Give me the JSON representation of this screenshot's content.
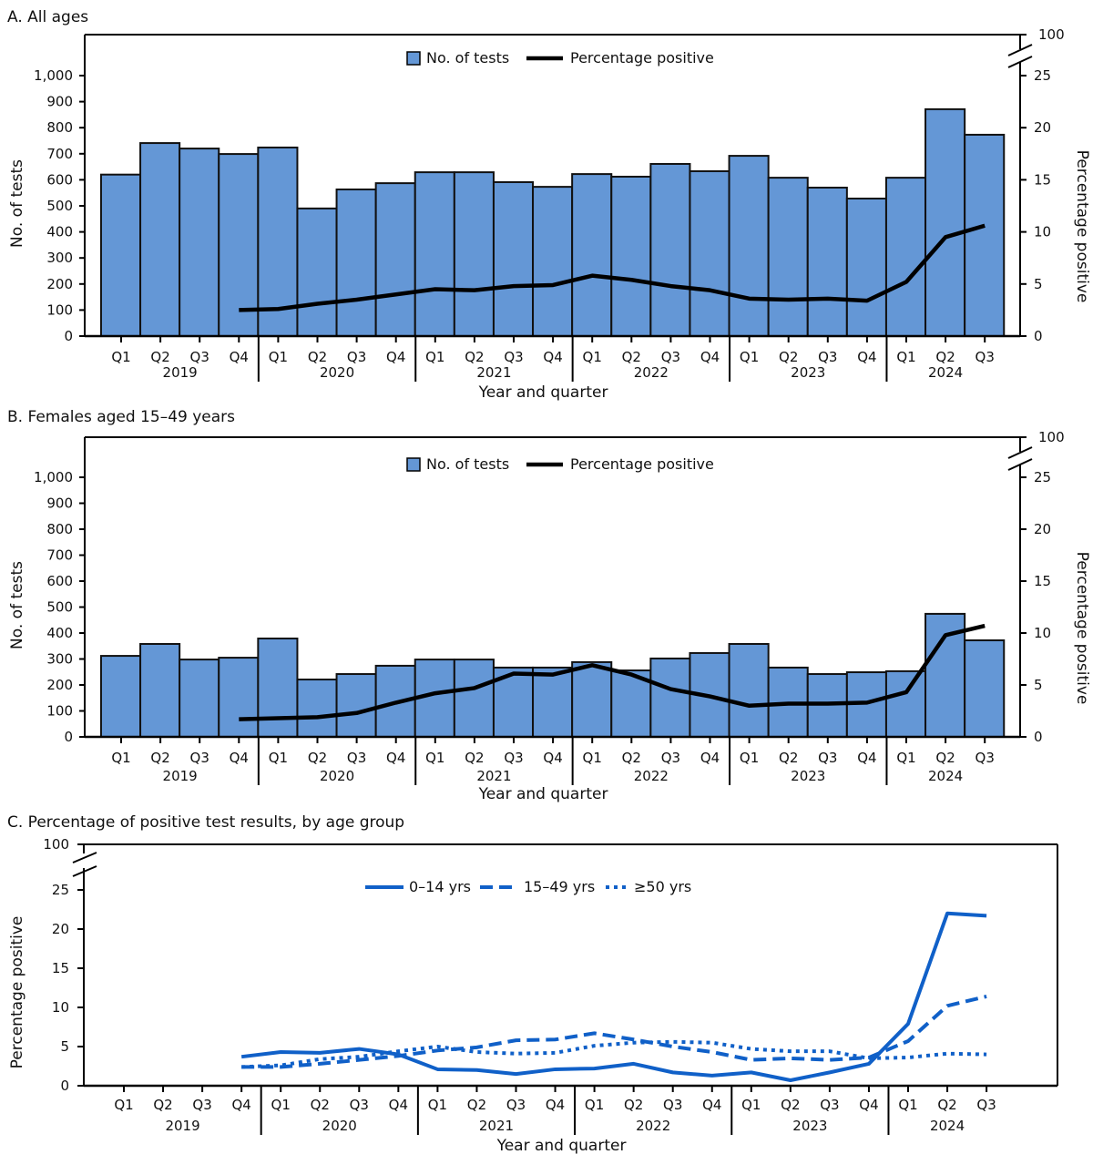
{
  "colors": {
    "bar": "#6497d6",
    "bar_stroke": "#111111",
    "pct_line": "#000000",
    "age_lines": "#1060c8"
  },
  "chart_data": [
    {
      "type": "bar",
      "title": "A. All ages",
      "xlabel": "Year and quarter",
      "ylabel": "No. of tests",
      "ylabel_right": "Percentage positive",
      "ylim": [
        0,
        1000
      ],
      "ylim_right": [
        0,
        25
      ],
      "right_axis_break_top": 100,
      "left_ticks": [
        "0",
        "100",
        "200",
        "300",
        "400",
        "500",
        "600",
        "700",
        "800",
        "900",
        "1,000"
      ],
      "right_ticks": [
        "0",
        "5",
        "10",
        "15",
        "20",
        "25",
        "100"
      ],
      "quarter_labels": [
        "Q1",
        "Q2",
        "Q3",
        "Q4",
        "Q1",
        "Q2",
        "Q3",
        "Q4",
        "Q1",
        "Q2",
        "Q3",
        "Q4",
        "Q1",
        "Q2",
        "Q3",
        "Q4",
        "Q1",
        "Q2",
        "Q3",
        "Q4",
        "Q1",
        "Q2",
        "Q3"
      ],
      "year_labels": [
        "2019",
        "2020",
        "2021",
        "2022",
        "2023",
        "2024"
      ],
      "legend": {
        "bars": "No. of tests",
        "line": "Percentage positive",
        "placement": "top-center"
      },
      "series": [
        {
          "name": "No. of tests",
          "kind": "bar",
          "values": [
            620,
            741,
            720,
            699,
            724,
            490,
            563,
            587,
            629,
            629,
            591,
            573,
            622,
            612,
            661,
            633,
            692,
            608,
            570,
            528,
            608,
            871,
            773
          ]
        },
        {
          "name": "Percentage positive",
          "kind": "line",
          "axis": "right",
          "values": [
            null,
            null,
            null,
            2.5,
            2.6,
            3.1,
            3.5,
            4.0,
            4.5,
            4.4,
            4.8,
            4.9,
            5.8,
            5.4,
            4.8,
            4.4,
            3.6,
            3.5,
            3.6,
            3.4,
            5.2,
            9.5,
            10.6
          ]
        }
      ]
    },
    {
      "type": "bar",
      "title": "B. Females aged 15–49 years",
      "xlabel": "Year and quarter",
      "ylabel": "No. of tests",
      "ylabel_right": "Percentage positive",
      "ylim": [
        0,
        1000
      ],
      "ylim_right": [
        0,
        25
      ],
      "right_axis_break_top": 100,
      "left_ticks": [
        "0",
        "100",
        "200",
        "300",
        "400",
        "500",
        "600",
        "700",
        "800",
        "900",
        "1,000"
      ],
      "right_ticks": [
        "0",
        "5",
        "10",
        "15",
        "20",
        "25",
        "100"
      ],
      "quarter_labels": [
        "Q1",
        "Q2",
        "Q3",
        "Q4",
        "Q1",
        "Q2",
        "Q3",
        "Q4",
        "Q1",
        "Q2",
        "Q3",
        "Q4",
        "Q1",
        "Q2",
        "Q3",
        "Q4",
        "Q1",
        "Q2",
        "Q3",
        "Q4",
        "Q1",
        "Q2",
        "Q3"
      ],
      "year_labels": [
        "2019",
        "2020",
        "2021",
        "2022",
        "2023",
        "2024"
      ],
      "legend": {
        "bars": "No. of tests",
        "line": "Percentage positive",
        "placement": "top-center"
      },
      "series": [
        {
          "name": "No. of tests",
          "kind": "bar",
          "values": [
            312,
            358,
            298,
            305,
            379,
            221,
            242,
            274,
            298,
            298,
            267,
            267,
            288,
            256,
            302,
            323,
            358,
            267,
            242,
            249,
            253,
            474,
            372
          ]
        },
        {
          "name": "Percentage positive",
          "kind": "line",
          "axis": "right",
          "values": [
            null,
            null,
            null,
            1.7,
            1.8,
            1.9,
            2.3,
            3.3,
            4.2,
            4.7,
            6.1,
            6.0,
            6.9,
            6.0,
            4.6,
            3.9,
            3.0,
            3.2,
            3.2,
            3.3,
            4.3,
            9.8,
            10.7
          ]
        }
      ]
    },
    {
      "type": "line",
      "title": "C. Percentage of positive test results, by age group",
      "xlabel": "Year and quarter",
      "ylabel": "Percentage positive",
      "ylim": [
        0,
        25
      ],
      "left_axis_break_top": 100,
      "left_ticks": [
        "0",
        "5",
        "10",
        "15",
        "20",
        "25",
        "100"
      ],
      "quarter_labels": [
        "Q1",
        "Q2",
        "Q3",
        "Q4",
        "Q1",
        "Q2",
        "Q3",
        "Q4",
        "Q1",
        "Q2",
        "Q3",
        "Q4",
        "Q1",
        "Q2",
        "Q3",
        "Q4",
        "Q1",
        "Q2",
        "Q3",
        "Q4",
        "Q1",
        "Q2",
        "Q3"
      ],
      "year_labels": [
        "2019",
        "2020",
        "2021",
        "2022",
        "2023",
        "2024"
      ],
      "legend": {
        "placement": "top-center"
      },
      "series": [
        {
          "name": "0–14 yrs",
          "style": "solid",
          "values": [
            null,
            null,
            null,
            3.7,
            4.3,
            4.2,
            4.7,
            4.0,
            2.1,
            2.0,
            1.5,
            2.1,
            2.2,
            2.8,
            1.7,
            1.3,
            1.7,
            0.7,
            1.7,
            2.8,
            7.9,
            22.0,
            21.7
          ]
        },
        {
          "name": "15–49 yrs",
          "style": "dashed",
          "values": [
            null,
            null,
            null,
            2.4,
            2.4,
            2.8,
            3.3,
            3.8,
            4.5,
            4.9,
            5.8,
            5.9,
            6.7,
            5.9,
            5.0,
            4.3,
            3.3,
            3.5,
            3.3,
            3.6,
            5.7,
            10.2,
            11.4
          ]
        },
        {
          "name": "≥50 yrs",
          "style": "dotted",
          "values": [
            null,
            null,
            null,
            2.4,
            2.6,
            3.4,
            3.7,
            4.4,
            5.0,
            4.3,
            4.1,
            4.2,
            5.1,
            5.5,
            5.6,
            5.5,
            4.7,
            4.4,
            4.4,
            3.5,
            3.6,
            4.1,
            4.0
          ]
        }
      ]
    }
  ]
}
